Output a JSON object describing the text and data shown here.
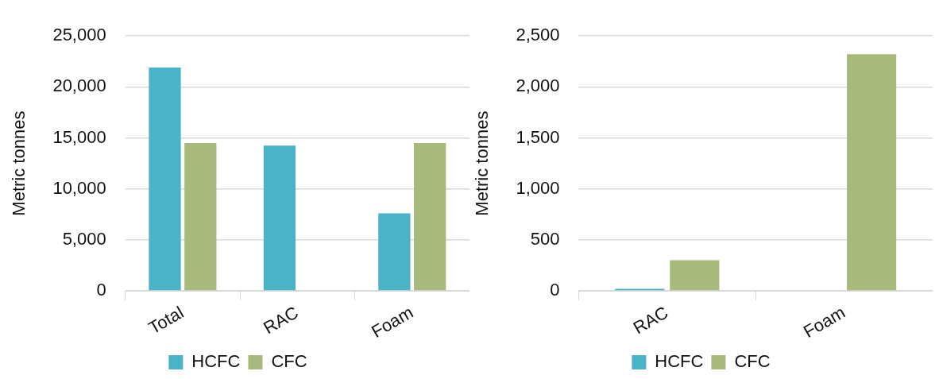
{
  "chart_data": [
    {
      "type": "bar",
      "ylabel": "Metric tonnes",
      "categories": [
        "Total",
        "RAC",
        "Foam"
      ],
      "series": [
        {
          "name": "HCFC",
          "color": "#4bb3c8",
          "values": [
            21900,
            14250,
            7600
          ]
        },
        {
          "name": "CFC",
          "color": "#a8b97c",
          "values": [
            14500,
            0,
            14500
          ]
        }
      ],
      "ylim": [
        0,
        25000
      ],
      "yticks": [
        {
          "value": 0,
          "label": "0"
        },
        {
          "value": 5000,
          "label": "5,000"
        },
        {
          "value": 10000,
          "label": "10,000"
        },
        {
          "value": 15000,
          "label": "15,000"
        },
        {
          "value": 20000,
          "label": "20,000"
        },
        {
          "value": 25000,
          "label": "25,000"
        }
      ],
      "grid": "y",
      "legend": "bottom"
    },
    {
      "type": "bar",
      "ylabel": "Metric tonnes",
      "categories": [
        "RAC",
        "Foam"
      ],
      "series": [
        {
          "name": "HCFC",
          "color": "#4bb3c8",
          "values": [
            20,
            0
          ]
        },
        {
          "name": "CFC",
          "color": "#a8b97c",
          "values": [
            300,
            2320
          ]
        }
      ],
      "ylim": [
        0,
        2500
      ],
      "yticks": [
        {
          "value": 0,
          "label": "0"
        },
        {
          "value": 500,
          "label": "500"
        },
        {
          "value": 1000,
          "label": "1,000"
        },
        {
          "value": 1500,
          "label": "1,500"
        },
        {
          "value": 2000,
          "label": "2,000"
        },
        {
          "value": 2500,
          "label": "2,500"
        }
      ],
      "grid": "y",
      "legend": "bottom"
    }
  ]
}
